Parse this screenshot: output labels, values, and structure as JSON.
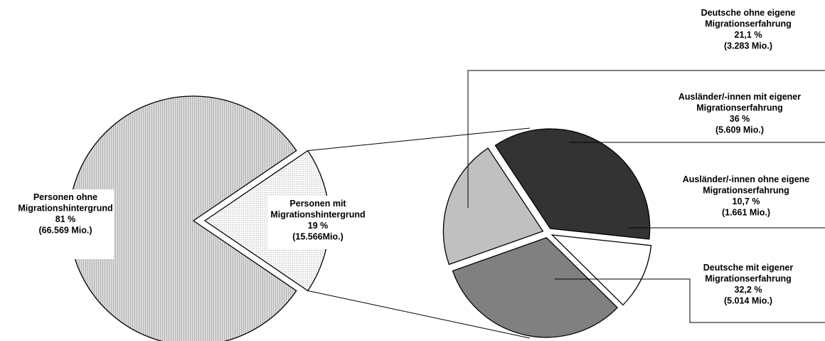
{
  "chart_data": [
    {
      "type": "pie",
      "slices": [
        {
          "label": [
            "Personen ohne",
            "Migrationshintergrund",
            "81 %",
            "(66.569 Mio.)"
          ],
          "value": 81,
          "absolute": "66.569 Mio.",
          "fill": "#d2d2d2",
          "pattern": "fine-vertical-hatch"
        },
        {
          "label": [
            "Personen mit",
            "Migrationshintergrund",
            "19 %",
            "(15.566Mio.)"
          ],
          "value": 19,
          "absolute": "15.566 Mio.",
          "fill": "#f2f2f2",
          "pattern": "dotted",
          "exploded": true
        }
      ]
    },
    {
      "type": "pie",
      "breakdown_of": "Personen mit Migrationshintergrund",
      "slices": [
        {
          "label": [
            "Ausländer/-innen mit eigener",
            "Migrationserfahrung",
            "36  %",
            "(5.609 Mio.)"
          ],
          "value": 36,
          "absolute": "5.609 Mio.",
          "fill": "#333333"
        },
        {
          "label": [
            "Ausländer/-innen ohne eigene",
            "Migrationserfahrung",
            "10,7 %",
            "(1.661 Mio.)"
          ],
          "value": 10.7,
          "absolute": "1.661 Mio.",
          "fill": "#ffffff"
        },
        {
          "label": [
            "Deutsche mit eigener",
            "Migrationserfahrung",
            "32,2 %",
            "(5.014 Mio.)"
          ],
          "value": 32.2,
          "absolute": "5.014 Mio.",
          "fill": "#808080"
        },
        {
          "label": [
            "Deutsche ohne eigene",
            "Migrationserfahrung",
            "21,1 %",
            "(3.283 Mio.)"
          ],
          "value": 21.1,
          "absolute": "3.283 Mio.",
          "fill": "#c0c0c0"
        }
      ]
    }
  ]
}
